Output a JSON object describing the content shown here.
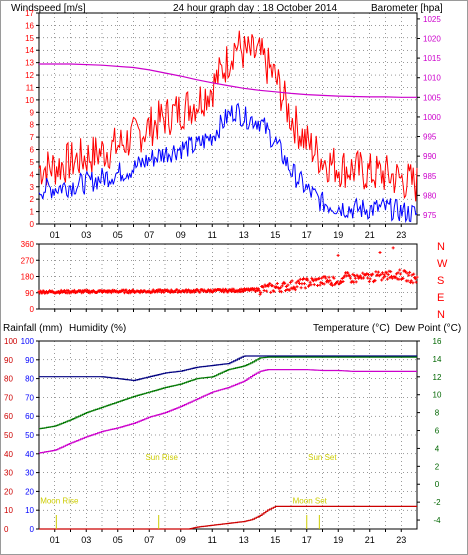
{
  "header": {
    "wind_label": "Windspeed [m/s]",
    "title": "24 hour graph day : 18 October 2014",
    "baro_label": "Barometer [hpa]"
  },
  "colors": {
    "wind": "#ff0000",
    "wind_avg": "#0000ff",
    "baro": "#cc00cc",
    "rain": "#cc0000",
    "humidity": "#000080",
    "temperature": "#007700",
    "dewpoint": "#cc00cc",
    "sun": "#cccc00",
    "grid": "#000000",
    "axis_blue": "#0000ff",
    "axis_green": "#006600"
  },
  "chart_data": [
    {
      "type": "line",
      "panel": "wind",
      "xticks": [
        "01",
        "03",
        "05",
        "07",
        "09",
        "11",
        "13",
        "15",
        "17",
        "19",
        "21",
        "23"
      ],
      "left_axis": {
        "label": "Windspeed [m/s]",
        "ticks": [
          0,
          1,
          2,
          3,
          4,
          5,
          6,
          7,
          8,
          9,
          10,
          11,
          12,
          13,
          14,
          15,
          16,
          17
        ],
        "ylim": [
          0,
          17
        ]
      },
      "right_axis": {
        "label": "Barometer [hpa]",
        "ticks": [
          975,
          980,
          985,
          990,
          995,
          1000,
          1005,
          1010,
          1015,
          1020,
          1025
        ],
        "ylim": [
          972.7,
          1026.5
        ]
      },
      "grid": true,
      "series": [
        {
          "name": "Windspeed [m/s]",
          "kind": "gust",
          "x": [
            0,
            1,
            2,
            3,
            4,
            5,
            6,
            7,
            8,
            9,
            10,
            11,
            12,
            12.5,
            13,
            14,
            15,
            16,
            17,
            18,
            19,
            20,
            21,
            22,
            23,
            24
          ],
          "values": [
            4.5,
            4.6,
            5.0,
            5.4,
            5.8,
            6.3,
            7.0,
            7.8,
            8.6,
            9.2,
            9.8,
            11.0,
            13.2,
            14.5,
            13.8,
            13.6,
            11.8,
            8.6,
            6.6,
            5.2,
            4.6,
            4.4,
            4.1,
            4.0,
            3.6,
            3.2
          ]
        },
        {
          "name": "",
          "kind": "average",
          "x": [
            0,
            1,
            2,
            3,
            4,
            5,
            6,
            7,
            8,
            9,
            10,
            11,
            12,
            12.5,
            13,
            14,
            15,
            16,
            17,
            18,
            19,
            20,
            21,
            22,
            23,
            24
          ],
          "values": [
            2.8,
            2.9,
            3.1,
            3.3,
            3.7,
            4.1,
            4.5,
            5.2,
            5.7,
            6.1,
            6.3,
            7.1,
            8.7,
            9.2,
            8.6,
            8.3,
            6.6,
            4.3,
            2.8,
            1.7,
            1.4,
            1.2,
            1.2,
            1.3,
            1.0,
            0.8
          ]
        },
        {
          "name": "Barometer [hpa]",
          "x": [
            0,
            2,
            4,
            6,
            7,
            8,
            9,
            10,
            11,
            12,
            13,
            14,
            15,
            16,
            17,
            18,
            19,
            20,
            21,
            22,
            23,
            24
          ],
          "values": [
            1013.5,
            1013.5,
            1013.2,
            1012.6,
            1012.0,
            1011.2,
            1010.4,
            1009.5,
            1008.7,
            1008.0,
            1007.3,
            1006.8,
            1006.4,
            1006.0,
            1005.7,
            1005.5,
            1005.3,
            1005.2,
            1005.1,
            1005.1,
            1005.0,
            1005.0
          ]
        }
      ]
    },
    {
      "type": "scatter",
      "panel": "wind_direction",
      "xticks": [
        "01",
        "03",
        "05",
        "07",
        "09",
        "11",
        "13",
        "15",
        "17",
        "19",
        "21",
        "23"
      ],
      "left_axis": {
        "ticks": [
          0,
          90,
          180,
          270,
          360
        ],
        "ylim": [
          0,
          360
        ]
      },
      "right_axis": {
        "ticks": [
          "N",
          "W",
          "S",
          "E",
          "N"
        ]
      },
      "grid": true,
      "series": [
        {
          "name": "",
          "x": [
            0,
            2,
            4,
            6,
            8,
            10,
            12,
            13,
            14,
            15,
            16,
            17,
            18,
            19,
            19.5,
            20,
            21,
            22,
            23,
            24
          ],
          "values": [
            95,
            96,
            97,
            98,
            99,
            100,
            102,
            104,
            108,
            118,
            130,
            145,
            155,
            160,
            175,
            170,
            175,
            185,
            190,
            165
          ]
        }
      ]
    },
    {
      "type": "line",
      "panel": "rain_humidity_temp",
      "xticks": [
        "01",
        "03",
        "05",
        "07",
        "09",
        "11",
        "13",
        "15",
        "17",
        "19",
        "21",
        "23"
      ],
      "left_axis": {
        "label": "Humidity (%)",
        "ticks": [
          0,
          10,
          20,
          30,
          40,
          50,
          60,
          70,
          80,
          90,
          100
        ],
        "ylim": [
          0,
          100
        ]
      },
      "left_axis_rain": {
        "label": "Rainfall (mm)"
      },
      "right_axis": {
        "label": "Temperature (°C)",
        "ticks": [
          -4,
          -2,
          0,
          2,
          4,
          6,
          8,
          10,
          12,
          14,
          16
        ],
        "ylim": [
          -5,
          16
        ]
      },
      "right_label_2": "Dew Point (°C)",
      "grid": true,
      "annotations": [
        "Moon Rise",
        "Sun Rise",
        "Sun Set",
        "Moon Set"
      ],
      "series": [
        {
          "name": "Humidity (%)",
          "axis": "left",
          "x": [
            0,
            1,
            2,
            3,
            4,
            5,
            6,
            7,
            8,
            9,
            10,
            11,
            12,
            12.5,
            13,
            14,
            15,
            16,
            17,
            18,
            19,
            20,
            21,
            22,
            23,
            24
          ],
          "values": [
            81,
            81,
            81,
            81,
            81,
            80,
            79,
            81,
            83,
            84,
            86,
            87,
            88,
            90,
            92,
            92,
            92,
            92,
            92,
            92,
            92,
            92,
            92,
            92,
            92,
            92
          ]
        },
        {
          "name": "Rainfall (mm)",
          "axis": "left",
          "x": [
            0,
            9.5,
            10,
            11,
            12,
            13,
            13.5,
            14,
            14.5,
            15,
            16,
            17,
            18,
            19,
            20,
            21,
            22,
            23,
            24
          ],
          "values": [
            0,
            0,
            1,
            2,
            3,
            4,
            5,
            7,
            10,
            12,
            12,
            12,
            12,
            12,
            12,
            12,
            12,
            12,
            12
          ]
        },
        {
          "name": "Temperature (°C)",
          "axis": "right",
          "x": [
            0,
            1,
            2,
            3,
            4,
            5,
            6,
            7,
            8,
            9,
            10,
            11,
            12,
            13,
            13.5,
            14,
            14.5,
            15,
            16,
            17,
            18,
            19,
            20,
            21,
            22,
            23,
            24
          ],
          "values": [
            6.2,
            6.5,
            7.2,
            8.0,
            8.6,
            9.2,
            9.8,
            10.3,
            10.8,
            11.2,
            11.8,
            12.0,
            12.8,
            13.2,
            13.6,
            14.1,
            14.2,
            14.2,
            14.2,
            14.2,
            14.2,
            14.2,
            14.2,
            14.2,
            14.2,
            14.2,
            14.2
          ]
        },
        {
          "name": "Dew Point (°C)",
          "axis": "right",
          "x": [
            0,
            1,
            2,
            3,
            4,
            5,
            6,
            7,
            8,
            9,
            10,
            11,
            12,
            13,
            13.5,
            14,
            14.5,
            15,
            16,
            17,
            18,
            19,
            20,
            21,
            22,
            23,
            24
          ],
          "values": [
            3.5,
            3.8,
            4.6,
            5.3,
            5.9,
            6.3,
            6.8,
            7.5,
            8.0,
            8.7,
            9.5,
            10.3,
            10.8,
            11.5,
            12.1,
            12.6,
            12.8,
            12.8,
            12.8,
            12.8,
            12.7,
            12.7,
            12.6,
            12.6,
            12.6,
            12.6,
            12.6
          ]
        }
      ],
      "events": [
        {
          "label": "Moon Rise",
          "x": 1.1,
          "y": 12
        },
        {
          "label": "Sun Rise",
          "x": 7.6,
          "y": 35
        },
        {
          "label": "Sun Set",
          "x": 17.8,
          "y": 35
        },
        {
          "label": "Moon Set",
          "x": 17.0,
          "y": 12
        }
      ]
    }
  ],
  "labels": {
    "rain_label": "Rainfall (mm)",
    "humidity_label": "Humidity (%)",
    "temp_label": "Temperature (°C)",
    "dew_label": "Dew Point (°C)",
    "dir_letters": [
      "N",
      "W",
      "S",
      "E",
      "N"
    ]
  }
}
